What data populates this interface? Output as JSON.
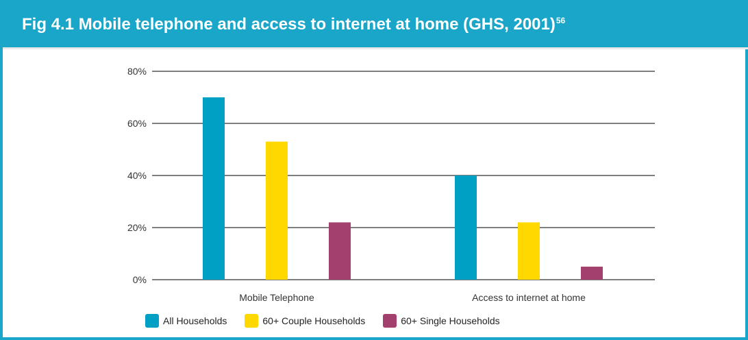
{
  "chart_data": {
    "type": "bar",
    "title": "Fig 4.1 Mobile telephone and access to internet at home (GHS, 2001)",
    "title_superscript": "56",
    "categories": [
      "Mobile Telephone",
      "Access to internet at home"
    ],
    "series": [
      {
        "name": "All Households",
        "values": [
          70,
          40
        ],
        "color": "#009fc4"
      },
      {
        "name": "60+ Couple Households",
        "values": [
          53,
          22
        ],
        "color": "#ffd800"
      },
      {
        "name": "60+ Single Households",
        "values": [
          22,
          5
        ],
        "color": "#a3406d"
      }
    ],
    "y_ticks": [
      "0%",
      "20%",
      "40%",
      "60%",
      "80%"
    ],
    "ylim": [
      0,
      80
    ],
    "grid": true,
    "legend_position": "bottom-left",
    "xlabel": "",
    "ylabel": ""
  },
  "colors": {
    "header_bg": "#1aa6c8",
    "grid_line": "#555555"
  }
}
